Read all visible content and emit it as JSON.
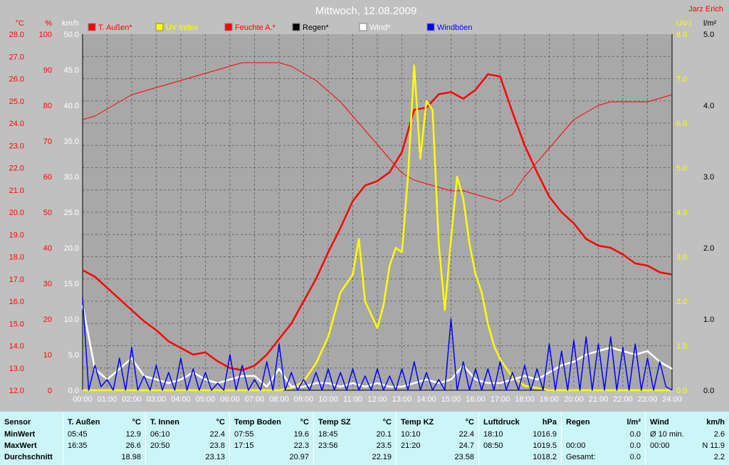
{
  "chart_data": {
    "type": "line",
    "title": "Mittwoch, 12.08.2009",
    "author": "Jarz Erich",
    "x_ticks": [
      "00:00",
      "01:00",
      "02:00",
      "03:00",
      "04:00",
      "05:00",
      "06:00",
      "07:00",
      "08:00",
      "09:00",
      "10:00",
      "11:00",
      "12:00",
      "13:00",
      "14:00",
      "15:00",
      "16:00",
      "17:00",
      "18:00",
      "19:00",
      "20:00",
      "21:00",
      "22:00",
      "23:00",
      "24:00"
    ],
    "axes": {
      "temp": {
        "unit": "°C",
        "min": 12.0,
        "max": 28.0,
        "ticks": [
          "12.0",
          "13.0",
          "14.0",
          "15.0",
          "16.0",
          "17.0",
          "18.0",
          "19.0",
          "20.0",
          "21.0",
          "22.0",
          "23.0",
          "24.0",
          "25.0",
          "26.0",
          "27.0",
          "28.0"
        ]
      },
      "humidity": {
        "unit": "%",
        "min": 0,
        "max": 100,
        "ticks": [
          "0",
          "10",
          "20",
          "30",
          "40",
          "50",
          "60",
          "70",
          "80",
          "90",
          "100"
        ]
      },
      "wind": {
        "unit": "km/h",
        "min": 0,
        "max": 50,
        "ticks": [
          "0.0",
          "5.0",
          "10.0",
          "15.0",
          "20.0",
          "25.0",
          "30.0",
          "35.0",
          "40.0",
          "45.0",
          "50.0"
        ]
      },
      "uv": {
        "unit": "UV-I",
        "min": 0,
        "max": 8,
        "ticks": [
          "0.0",
          "1.0",
          "2.0",
          "3.0",
          "4.0",
          "5.0",
          "6.0",
          "7.0",
          "8.0"
        ]
      },
      "rain": {
        "unit": "l/m²",
        "min": 0,
        "max": 5,
        "ticks": [
          "0.0",
          "1.0",
          "2.0",
          "3.0",
          "4.0",
          "5.0"
        ]
      }
    },
    "legend": [
      {
        "name": "T. Außen*",
        "color": "#ff0000"
      },
      {
        "name": "UV Index",
        "color": "#ffff00"
      },
      {
        "name": "Feuchte A.*",
        "color": "#ff0000"
      },
      {
        "name": "Regen*",
        "color": "#000000"
      },
      {
        "name": "Wind*",
        "color": "#ffffff"
      },
      {
        "name": "Windböen",
        "color": "#0000ff"
      }
    ],
    "series": [
      {
        "name": "T. Außen*",
        "color": "#ff0000",
        "axis": "temp",
        "x": [
          0,
          0.5,
          1,
          1.5,
          2,
          2.5,
          3,
          3.5,
          4,
          4.5,
          5,
          5.5,
          6,
          6.5,
          7,
          7.5,
          8,
          8.5,
          9,
          9.5,
          10,
          10.5,
          11,
          11.5,
          12,
          12.5,
          13,
          13.5,
          14,
          14.5,
          15,
          15.5,
          16,
          16.5,
          17,
          17.5,
          18,
          18.5,
          19,
          19.5,
          20,
          20.5,
          21,
          21.5,
          22,
          22.5,
          23,
          23.5,
          24
        ],
        "y": [
          17.4,
          17.1,
          16.6,
          16.1,
          15.6,
          15.1,
          14.7,
          14.2,
          13.9,
          13.6,
          13.7,
          13.3,
          13.0,
          12.9,
          13.1,
          13.6,
          14.3,
          15.0,
          16.0,
          17.0,
          18.2,
          19.3,
          20.5,
          21.2,
          21.4,
          21.8,
          22.7,
          24.6,
          24.7,
          25.3,
          25.4,
          25.1,
          25.5,
          26.2,
          26.1,
          24.5,
          23.0,
          21.8,
          20.7,
          20.0,
          19.5,
          18.8,
          18.5,
          18.4,
          18.1,
          17.7,
          17.6,
          17.3,
          17.2
        ]
      },
      {
        "name": "Feuchte A.*",
        "color": "#ff0000",
        "axis": "humidity",
        "x": [
          0,
          0.5,
          1,
          1.5,
          2,
          2.5,
          3,
          3.5,
          4,
          4.5,
          5,
          5.5,
          6,
          6.5,
          7,
          7.5,
          8,
          8.5,
          9,
          9.5,
          10,
          10.5,
          11,
          11.5,
          12,
          12.5,
          13,
          13.5,
          14,
          14.5,
          15,
          15.5,
          16,
          16.5,
          17,
          17.5,
          18,
          18.5,
          19,
          19.5,
          20,
          20.5,
          21,
          21.5,
          22,
          22.5,
          23,
          23.5,
          24
        ],
        "y": [
          76,
          77,
          79,
          81,
          83,
          84,
          85,
          86,
          87,
          88,
          89,
          90,
          91,
          92,
          92,
          92,
          92,
          91,
          89,
          87,
          84,
          81,
          77,
          73,
          69,
          65,
          61,
          59,
          58,
          57,
          56,
          56,
          55,
          54,
          53,
          55,
          60,
          64,
          68,
          72,
          76,
          78,
          80,
          81,
          81,
          81,
          81,
          82,
          83
        ]
      },
      {
        "name": "UV Index",
        "color": "#ffff00",
        "axis": "uv",
        "x": [
          0,
          1,
          2,
          3,
          4,
          5,
          6,
          7,
          8,
          8.5,
          9,
          9.5,
          10,
          10.5,
          11,
          11.25,
          11.5,
          12,
          12.25,
          12.5,
          12.75,
          13,
          13.25,
          13.5,
          13.75,
          14,
          14.25,
          14.5,
          14.75,
          15,
          15.25,
          15.5,
          15.75,
          16,
          16.25,
          16.5,
          16.75,
          17,
          17.25,
          17.5,
          17.75,
          18,
          18.5,
          19,
          19.5,
          20,
          21,
          22,
          23,
          24
        ],
        "y": [
          0,
          0,
          0,
          0,
          0,
          0,
          0,
          0,
          0,
          0.05,
          0.2,
          0.6,
          1.2,
          2.2,
          2.6,
          3.4,
          2.0,
          1.4,
          1.9,
          2.8,
          3.2,
          3.1,
          4.8,
          7.3,
          5.2,
          6.5,
          6.3,
          3.3,
          1.8,
          3.4,
          4.8,
          4.3,
          3.3,
          2.6,
          2.2,
          1.5,
          1.0,
          0.7,
          0.5,
          0.3,
          0.2,
          0.1,
          0.05,
          0,
          0,
          0,
          0,
          0,
          0,
          0
        ]
      },
      {
        "name": "Wind*",
        "color": "#ffffff",
        "axis": "wind",
        "x": [
          0,
          0.5,
          1,
          1.5,
          2,
          2.5,
          3,
          3.5,
          4,
          4.5,
          5,
          5.5,
          6,
          6.5,
          7,
          7.5,
          8,
          8.5,
          9,
          9.5,
          10,
          10.5,
          11,
          11.5,
          12,
          12.5,
          13,
          13.5,
          14,
          14.5,
          15,
          15.5,
          16,
          16.5,
          17,
          17.5,
          18,
          18.5,
          19,
          19.5,
          20,
          20.5,
          21,
          21.5,
          22,
          22.5,
          23,
          23.5,
          24
        ],
        "y": [
          12.0,
          3.0,
          1.5,
          3.0,
          4.5,
          2.0,
          1.5,
          1.0,
          1.5,
          2.5,
          1.5,
          1.0,
          1.5,
          2.0,
          2.0,
          0.5,
          3.0,
          0.5,
          0.5,
          1.0,
          1.0,
          0.5,
          1.0,
          0.5,
          1.0,
          0.5,
          0.5,
          1.0,
          1.5,
          1.0,
          1.5,
          3.5,
          1.5,
          1.0,
          1.0,
          1.5,
          2.0,
          1.5,
          2.5,
          3.5,
          4.0,
          5.0,
          5.5,
          6.0,
          5.5,
          5.0,
          5.5,
          4.0,
          3.0
        ]
      },
      {
        "name": "Windböen",
        "color": "#0000ff",
        "axis": "wind",
        "x": [
          0,
          0.25,
          0.5,
          0.75,
          1,
          1.25,
          1.5,
          1.75,
          2,
          2.25,
          2.5,
          2.75,
          3,
          3.25,
          3.5,
          3.75,
          4,
          4.25,
          4.5,
          4.75,
          5,
          5.25,
          5.5,
          5.75,
          6,
          6.25,
          6.5,
          6.75,
          7,
          7.25,
          7.5,
          7.75,
          8,
          8.25,
          8.5,
          8.75,
          9,
          9.25,
          9.5,
          9.75,
          10,
          10.25,
          10.5,
          10.75,
          11,
          11.25,
          11.5,
          11.75,
          12,
          12.25,
          12.5,
          12.75,
          13,
          13.25,
          13.5,
          13.75,
          14,
          14.25,
          14.5,
          14.75,
          15,
          15.25,
          15.5,
          15.75,
          16,
          16.25,
          16.5,
          16.75,
          17,
          17.25,
          17.5,
          17.75,
          18,
          18.25,
          18.5,
          18.75,
          19,
          19.25,
          19.5,
          19.75,
          20,
          20.25,
          20.5,
          20.75,
          21,
          21.25,
          21.5,
          21.75,
          22,
          22.25,
          22.5,
          22.75,
          23,
          23.25,
          23.5,
          23.75,
          24
        ],
        "y": [
          13.0,
          0,
          3.5,
          0.5,
          1.5,
          0,
          4.5,
          0,
          6.0,
          0,
          2.0,
          0,
          3.5,
          0,
          2.5,
          0,
          4.5,
          0,
          3.0,
          0,
          2.5,
          0,
          1.0,
          0,
          5.0,
          0,
          3.5,
          0,
          1.5,
          0,
          4.0,
          0,
          6.5,
          0,
          2.5,
          0,
          1.5,
          0,
          2.5,
          0,
          3.0,
          0,
          2.5,
          0,
          3.0,
          0,
          2.0,
          0,
          3.0,
          0,
          2.0,
          0,
          3.0,
          0,
          4.0,
          0,
          2.5,
          0,
          1.5,
          0,
          10.0,
          0,
          4.0,
          0,
          3.0,
          0,
          3.0,
          0,
          4.0,
          0,
          2.5,
          0,
          3.5,
          0,
          3.0,
          0,
          6.5,
          0,
          5.5,
          0,
          7.0,
          0,
          7.5,
          0,
          6.5,
          0,
          7.5,
          0,
          6.0,
          0,
          6.5,
          0,
          4.5,
          0,
          4.0,
          0.5,
          0
        ]
      }
    ]
  },
  "stats": {
    "columns": [
      {
        "title": "Sensor",
        "unit": "",
        "rows": [
          {
            "time": "MinWert",
            "value": ""
          },
          {
            "time": "MaxWert",
            "value": ""
          },
          {
            "time": "Durchschnitt",
            "value": ""
          }
        ]
      },
      {
        "title": "T. Außen",
        "unit": "°C",
        "rows": [
          {
            "time": "05:45",
            "value": "12.9"
          },
          {
            "time": "16:35",
            "value": "26.6"
          },
          {
            "time": "",
            "value": "18.98"
          }
        ]
      },
      {
        "title": "T. Innen",
        "unit": "°C",
        "rows": [
          {
            "time": "06:10",
            "value": "22.4"
          },
          {
            "time": "20:50",
            "value": "23.8"
          },
          {
            "time": "",
            "value": "23.13"
          }
        ]
      },
      {
        "title": "Temp Boden",
        "unit": "°C",
        "rows": [
          {
            "time": "07:55",
            "value": "19.6"
          },
          {
            "time": "17:15",
            "value": "22.3"
          },
          {
            "time": "",
            "value": "20.97"
          }
        ]
      },
      {
        "title": "Temp SZ",
        "unit": "°C",
        "rows": [
          {
            "time": "18:45",
            "value": "20.1"
          },
          {
            "time": "23:56",
            "value": "23.5"
          },
          {
            "time": "",
            "value": "22.19"
          }
        ]
      },
      {
        "title": "Temp KZ",
        "unit": "°C",
        "rows": [
          {
            "time": "10:10",
            "value": "22.4"
          },
          {
            "time": "21:20",
            "value": "24.7"
          },
          {
            "time": "",
            "value": "23.58"
          }
        ]
      },
      {
        "title": "Luftdruck",
        "unit": "hPa",
        "rows": [
          {
            "time": "18:10",
            "value": "1016.9"
          },
          {
            "time": "08:50",
            "value": "1019.5"
          },
          {
            "time": "",
            "value": "1018.2"
          }
        ]
      },
      {
        "title": "Regen",
        "unit": "l/m²",
        "rows": [
          {
            "time": "",
            "value": "0.0"
          },
          {
            "time": "00:00",
            "value": "0.0"
          },
          {
            "time": "Gesamt:",
            "value": "0.0"
          }
        ]
      },
      {
        "title": "Wind",
        "unit": "km/h",
        "rows": [
          {
            "time": "Ø 10 min.",
            "value": "2.6"
          },
          {
            "time": "00:00",
            "value": "N 11.9"
          },
          {
            "time": "",
            "value": "2.2"
          }
        ]
      }
    ]
  }
}
